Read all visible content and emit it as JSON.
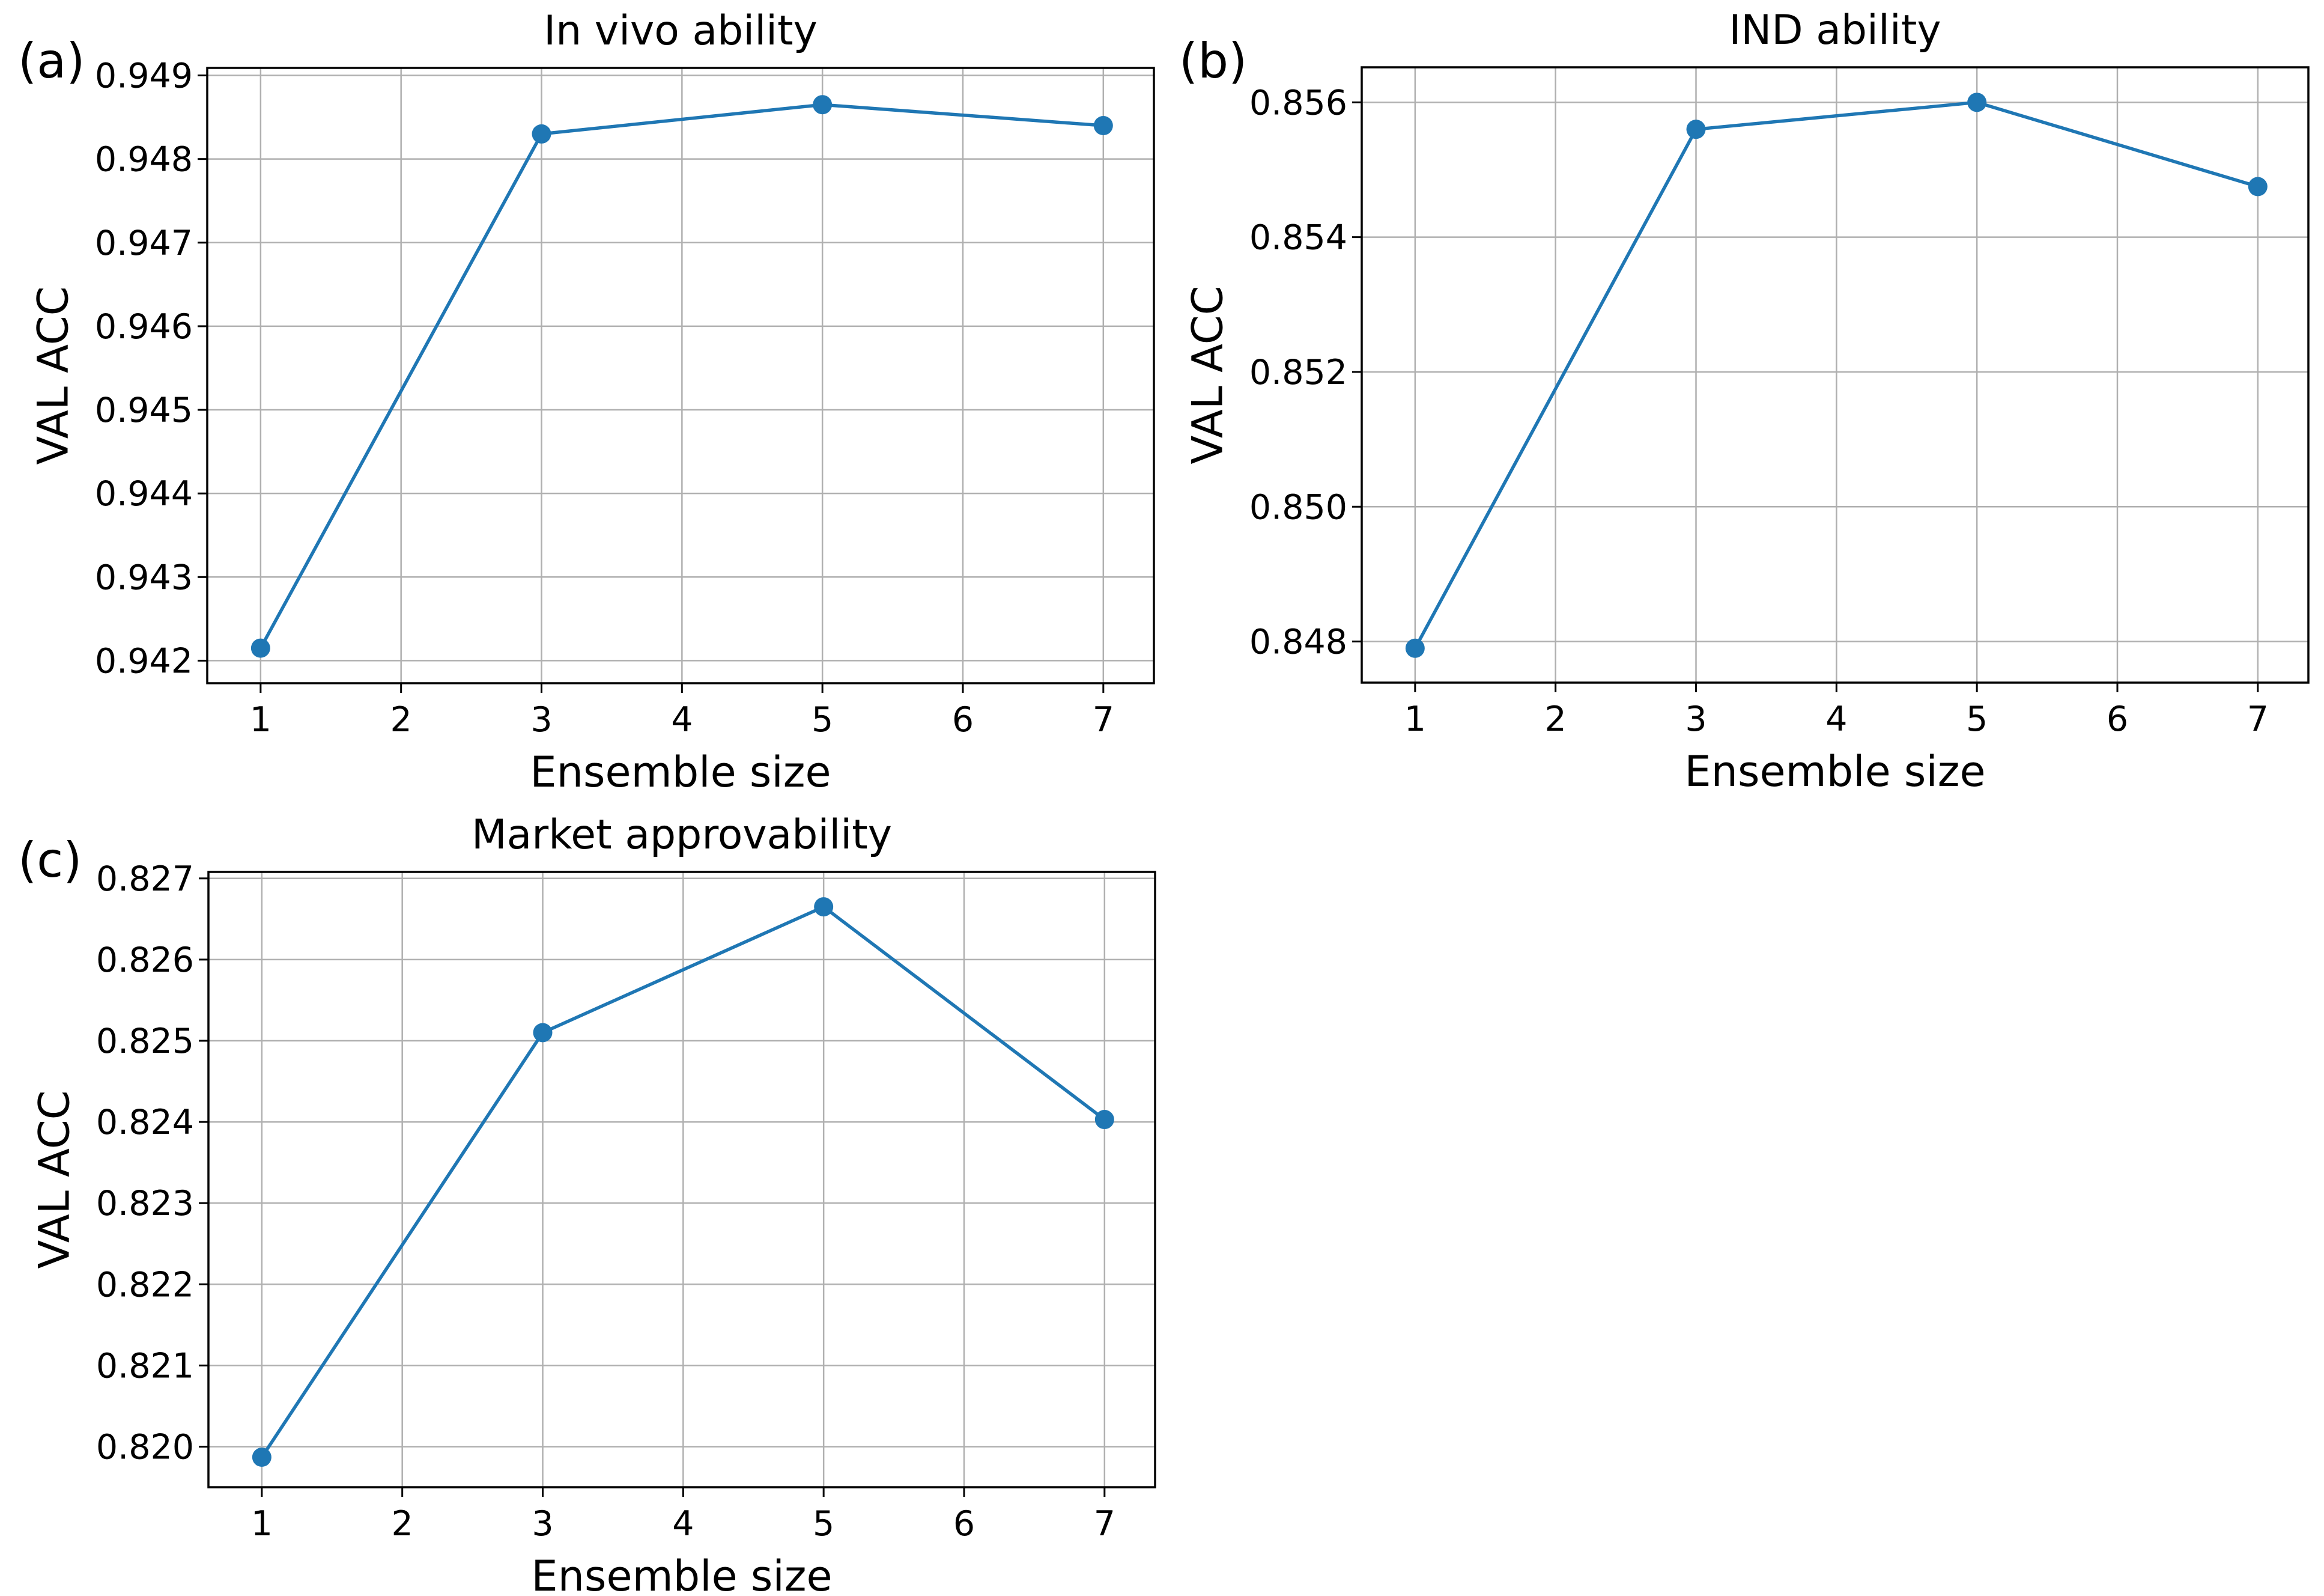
{
  "figure": {
    "background_color": "#ffffff",
    "line_color": "#1f77b4",
    "grid_color": "#b0b0b0",
    "axis_color": "#000000",
    "text_color": "#000000"
  },
  "chart_data": [
    {
      "type": "line",
      "panel_label": "(a)",
      "title": "In vivo ability",
      "xlabel": "Ensemble size",
      "ylabel": "VAL ACC",
      "x": [
        1,
        3,
        5,
        7
      ],
      "y": [
        0.94215,
        0.9483,
        0.94865,
        0.9484
      ],
      "xlim": [
        0.62,
        7.36
      ],
      "ylim": [
        0.94173,
        0.94909
      ],
      "xtick_values": [
        1,
        2,
        3,
        4,
        5,
        6,
        7
      ],
      "xtick_labels": [
        "1",
        "2",
        "3",
        "4",
        "5",
        "6",
        "7"
      ],
      "ytick_values": [
        0.942,
        0.943,
        0.944,
        0.945,
        0.946,
        0.947,
        0.948,
        0.949
      ],
      "ytick_labels": [
        "0.942",
        "0.943",
        "0.944",
        "0.945",
        "0.946",
        "0.947",
        "0.948",
        "0.949"
      ],
      "grid": true,
      "marker": "circle",
      "legend": null
    },
    {
      "type": "line",
      "panel_label": "(b)",
      "title": "IND ability",
      "xlabel": "Ensemble size",
      "ylabel": "VAL ACC",
      "x": [
        1,
        3,
        5,
        7
      ],
      "y": [
        0.8479,
        0.8556,
        0.856,
        0.85475
      ],
      "xlim": [
        0.62,
        7.36
      ],
      "ylim": [
        0.84739,
        0.85652
      ],
      "xtick_values": [
        1,
        2,
        3,
        4,
        5,
        6,
        7
      ],
      "xtick_labels": [
        "1",
        "2",
        "3",
        "4",
        "5",
        "6",
        "7"
      ],
      "ytick_values": [
        0.848,
        0.85,
        0.852,
        0.854,
        0.856
      ],
      "ytick_labels": [
        "0.848",
        "0.850",
        "0.852",
        "0.854",
        "0.856"
      ],
      "grid": true,
      "marker": "circle",
      "legend": null
    },
    {
      "type": "line",
      "panel_label": "(c)",
      "title": "Market approvability",
      "xlabel": "Ensemble size",
      "ylabel": "VAL ACC",
      "x": [
        1,
        3,
        5,
        7
      ],
      "y": [
        0.81987,
        0.8251,
        0.82665,
        0.82403
      ],
      "xlim": [
        0.62,
        7.36
      ],
      "ylim": [
        0.8195,
        0.82708
      ],
      "xtick_values": [
        1,
        2,
        3,
        4,
        5,
        6,
        7
      ],
      "xtick_labels": [
        "1",
        "2",
        "3",
        "4",
        "5",
        "6",
        "7"
      ],
      "ytick_values": [
        0.82,
        0.821,
        0.822,
        0.823,
        0.824,
        0.825,
        0.826,
        0.827
      ],
      "ytick_labels": [
        "0.820",
        "0.821",
        "0.822",
        "0.823",
        "0.824",
        "0.825",
        "0.826",
        "0.827"
      ],
      "grid": true,
      "marker": "circle",
      "legend": null
    }
  ]
}
